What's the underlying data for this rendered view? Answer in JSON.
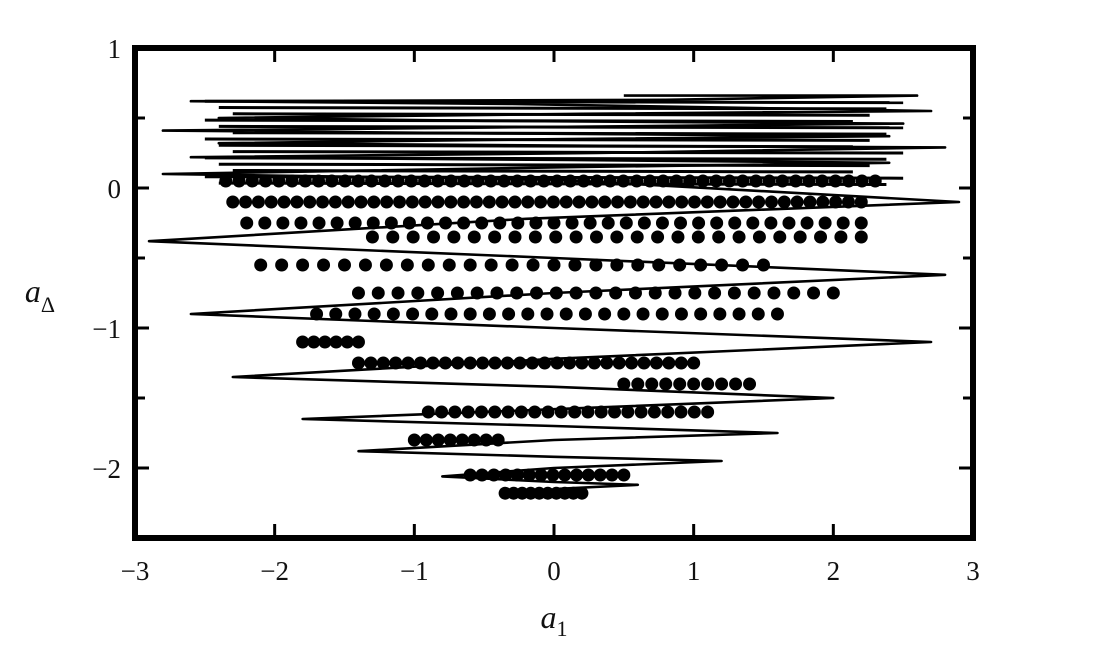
{
  "chart_data": {
    "type": "scatter",
    "xlabel": {
      "symbol": "a",
      "subscript": "1"
    },
    "ylabel": {
      "symbol": "a",
      "subscript": "Δ"
    },
    "xlim": [
      -3,
      3
    ],
    "ylim": [
      -2.5,
      1
    ],
    "x_ticks": [
      -3,
      -2,
      -1,
      0,
      1,
      2,
      3
    ],
    "x_tick_labels": [
      "−3",
      "−2",
      "−1",
      "0",
      "1",
      "2",
      "3"
    ],
    "y_ticks": [
      1,
      0,
      -1,
      -2
    ],
    "y_tick_labels": [
      "1",
      "0",
      "−1",
      "−2"
    ],
    "grid": false,
    "colors": {
      "ink": "#000000",
      "background": "#ffffff"
    },
    "series": [
      {
        "style": "line",
        "points": [
          [
            0.5,
            0.66
          ],
          [
            2.6,
            0.66
          ],
          [
            0.8,
            0.63
          ],
          [
            -2.6,
            0.62
          ],
          [
            -0.3,
            0.6
          ],
          [
            2.7,
            0.55
          ],
          [
            0.2,
            0.53
          ],
          [
            -2.4,
            0.5
          ],
          [
            -0.5,
            0.48
          ],
          [
            2.5,
            0.46
          ],
          [
            0.4,
            0.44
          ],
          [
            -2.8,
            0.41
          ],
          [
            -0.4,
            0.39
          ],
          [
            2.4,
            0.37
          ],
          [
            0.1,
            0.35
          ],
          [
            -2.4,
            0.32
          ],
          [
            0.6,
            0.3
          ],
          [
            2.8,
            0.29
          ],
          [
            0.3,
            0.25
          ],
          [
            -2.6,
            0.22
          ],
          [
            0.1,
            0.2
          ],
          [
            2.4,
            0.18
          ],
          [
            0.2,
            0.15
          ],
          [
            -2.8,
            0.1
          ],
          [
            0.0,
            0.06
          ],
          [
            2.9,
            -0.1
          ],
          [
            -0.2,
            -0.22
          ],
          [
            -2.9,
            -0.38
          ],
          [
            0.0,
            -0.5
          ],
          [
            2.8,
            -0.62
          ],
          [
            0.0,
            -0.75
          ],
          [
            -2.6,
            -0.9
          ],
          [
            0.0,
            -1.0
          ],
          [
            2.7,
            -1.1
          ],
          [
            0.0,
            -1.22
          ],
          [
            -2.3,
            -1.35
          ],
          [
            0.0,
            -1.42
          ],
          [
            2.0,
            -1.5
          ],
          [
            0.0,
            -1.58
          ],
          [
            -1.8,
            -1.65
          ],
          [
            0.0,
            -1.7
          ],
          [
            1.6,
            -1.75
          ],
          [
            0.0,
            -1.8
          ],
          [
            -1.4,
            -1.88
          ],
          [
            0.0,
            -1.92
          ],
          [
            1.2,
            -1.95
          ],
          [
            0.0,
            -2.0
          ],
          [
            -0.8,
            -2.06
          ],
          [
            0.0,
            -2.1
          ],
          [
            0.6,
            -2.12
          ],
          [
            0.0,
            -2.15
          ]
        ]
      },
      {
        "style": "markers",
        "rows": [
          {
            "y": 0.05,
            "x": [
              -2.35,
              2.3
            ],
            "n": 50
          },
          {
            "y": -0.1,
            "x": [
              -2.3,
              2.2
            ],
            "n": 50
          },
          {
            "y": -0.25,
            "x": [
              -2.2,
              2.2
            ],
            "n": 35
          },
          {
            "y": -0.35,
            "x": [
              -1.3,
              2.2
            ],
            "n": 25
          },
          {
            "y": -0.55,
            "x": [
              -2.1,
              1.5
            ],
            "n": 25
          },
          {
            "y": -0.75,
            "x": [
              -1.4,
              2.0
            ],
            "n": 25
          },
          {
            "y": -0.9,
            "x": [
              -1.7,
              1.6
            ],
            "n": 25
          },
          {
            "y": -1.1,
            "x": [
              -1.8,
              -1.4
            ],
            "n": 6
          },
          {
            "y": -1.25,
            "x": [
              -1.4,
              1.0
            ],
            "n": 28
          },
          {
            "y": -1.4,
            "x": [
              0.5,
              1.4
            ],
            "n": 10
          },
          {
            "y": -1.6,
            "x": [
              -0.9,
              1.1
            ],
            "n": 22
          },
          {
            "y": -1.8,
            "x": [
              -1.0,
              -0.4
            ],
            "n": 8
          },
          {
            "y": -2.05,
            "x": [
              -0.6,
              0.5
            ],
            "n": 14
          },
          {
            "y": -2.18,
            "x": [
              -0.35,
              0.2
            ],
            "n": 10
          }
        ]
      }
    ]
  }
}
